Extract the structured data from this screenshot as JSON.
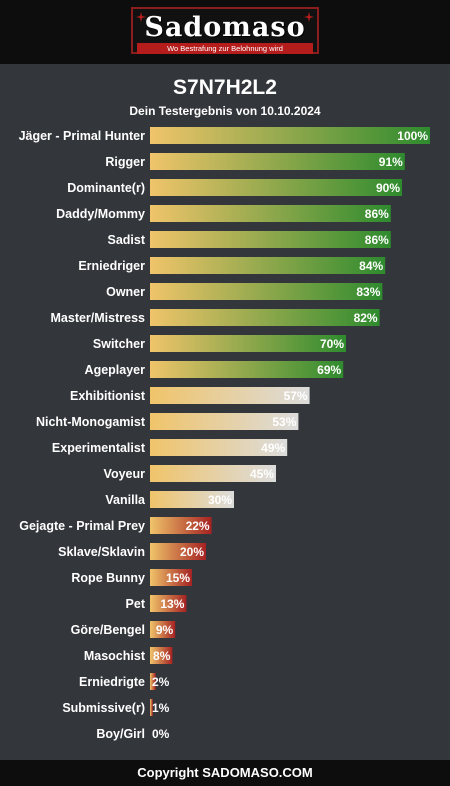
{
  "header": {
    "logo_text": "Sadomaso",
    "logo_tagline": "Wo Bestrafung zur Belohnung wird"
  },
  "title": "S7N7H2L2",
  "subtitle": "Dein Testergebnis von 10.10.2024",
  "footer": {
    "copyright": "Copyright SADOMASO.COM"
  },
  "colors": {
    "bar_start": "#f0c46a",
    "positive_end": "#2e8b2e",
    "neutral_end": "#dcdcdc",
    "negative_end": "#a52222",
    "background": "#33363b"
  },
  "chart_data": {
    "type": "bar",
    "orientation": "horizontal",
    "xlim": [
      0,
      100
    ],
    "value_suffix": "%",
    "categories": [
      "Jäger - Primal Hunter",
      "Rigger",
      "Dominante(r)",
      "Daddy/Mommy",
      "Sadist",
      "Erniedriger",
      "Owner",
      "Master/Mistress",
      "Switcher",
      "Ageplayer",
      "Exhibitionist",
      "Nicht-Monogamist",
      "Experimentalist",
      "Voyeur",
      "Vanilla",
      "Gejagte - Primal Prey",
      "Sklave/Sklavin",
      "Rope Bunny",
      "Pet",
      "Göre/Bengel",
      "Masochist",
      "Erniedrigte",
      "Submissive(r)",
      "Boy/Girl"
    ],
    "values": [
      100,
      91,
      90,
      86,
      86,
      84,
      83,
      82,
      70,
      69,
      57,
      53,
      49,
      45,
      30,
      22,
      20,
      15,
      13,
      9,
      8,
      2,
      1,
      0
    ],
    "groups": [
      "positive",
      "positive",
      "positive",
      "positive",
      "positive",
      "positive",
      "positive",
      "positive",
      "positive",
      "positive",
      "neutral",
      "neutral",
      "neutral",
      "neutral",
      "neutral",
      "negative",
      "negative",
      "negative",
      "negative",
      "negative",
      "negative",
      "negative",
      "negative",
      "negative"
    ]
  }
}
